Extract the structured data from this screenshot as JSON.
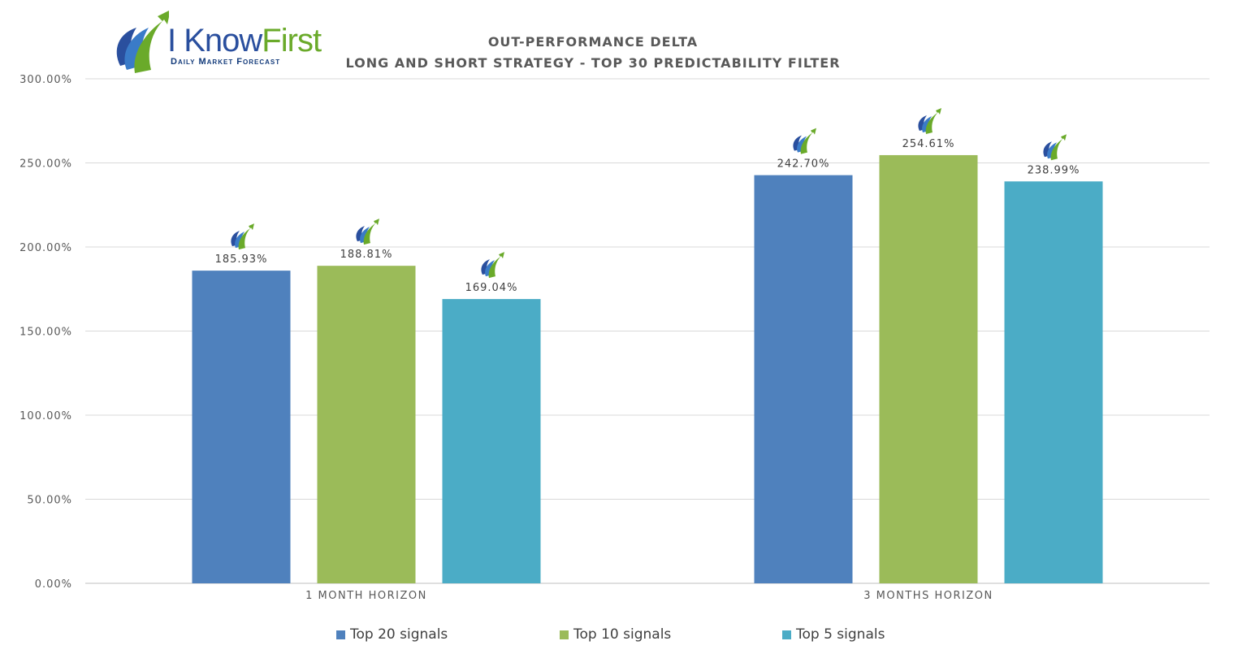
{
  "logo": {
    "word1": "I Know",
    "word2": "First",
    "tagline": "Daily Market Forecast"
  },
  "title_line1": "OUT-PERFORMANCE DELTA",
  "title_line2": "LONG AND SHORT STRATEGY - TOP 30 PREDICTABILITY FILTER",
  "chart_data": {
    "type": "bar",
    "categories": [
      "1 MONTH HORIZON",
      "3 MONTHS HORIZON"
    ],
    "series": [
      {
        "name": "Top 20 signals",
        "color": "#4f81bd",
        "values": [
          185.93,
          242.7
        ],
        "labels": [
          "185.93%",
          "242.70%"
        ]
      },
      {
        "name": "Top 10 signals",
        "color": "#9bbb59",
        "values": [
          188.81,
          254.61
        ],
        "labels": [
          "188.81%",
          "254.61%"
        ]
      },
      {
        "name": "Top 5 signals",
        "color": "#4bacc6",
        "values": [
          169.04,
          238.99
        ],
        "labels": [
          "169.04%",
          "238.99%"
        ]
      }
    ],
    "ylim": [
      0,
      300
    ],
    "yticks": [
      "0.00%",
      "50.00%",
      "100.00%",
      "150.00%",
      "200.00%",
      "250.00%",
      "300.00%"
    ],
    "grid": true,
    "legend": "bottom"
  }
}
